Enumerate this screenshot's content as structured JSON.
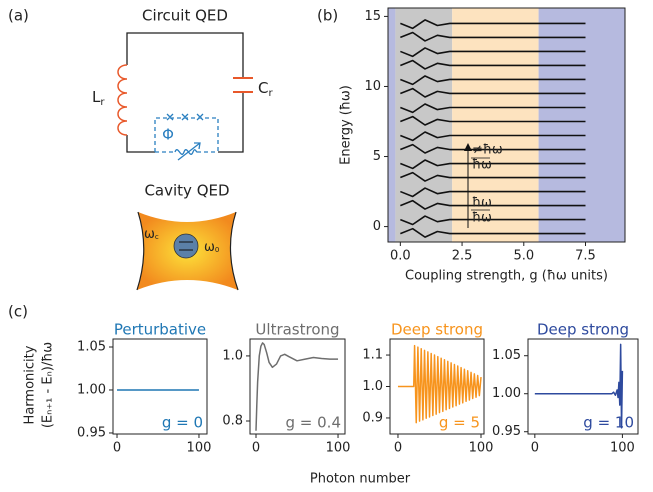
{
  "panels": [
    "(a)",
    "(b)",
    "(c)"
  ],
  "diagram": {
    "circuit_title": "Circuit QED",
    "inductor": {
      "main": "L",
      "sub": "r"
    },
    "capacitor": {
      "main": "C",
      "sub": "r"
    },
    "flux": "Φ",
    "cavity_title": "Cavity QED",
    "cavity_mode": {
      "main": "ω",
      "sub": "c"
    },
    "atom": {
      "main": "ω",
      "sub": "0"
    }
  },
  "panel_c": {
    "ylabel_line1": "Harmonicity",
    "ylabel_line2": "(Eₙ₊₁ - Eₙ)/ħω",
    "xlabel": "Photon number"
  },
  "chart_data": [
    {
      "type": "line",
      "xlabel": "Coupling strength, g (ħω units)",
      "ylabel": "Energy (ħω)",
      "xlim": [
        -0.5,
        9.1
      ],
      "ylim": [
        -1.1,
        15.6
      ],
      "xticks": [
        {
          "value": 0,
          "label": "0.0"
        },
        2.5,
        {
          "value": 5,
          "label": "5.0"
        },
        7.5
      ],
      "yticks": [
        0,
        5,
        10,
        15
      ],
      "regions": [
        {
          "from": -0.5,
          "to": -0.2,
          "color": "#b6badf"
        },
        {
          "from": -0.2,
          "to": 2.1,
          "color": "#c8c8c8"
        },
        {
          "from": 2.1,
          "to": 5.6,
          "color": "#fde3bf"
        },
        {
          "from": 5.6,
          "to": 9.1,
          "color": "#b6badf"
        }
      ],
      "annotations": [
        "≠ħω",
        "ħω",
        "ħω",
        "ħω"
      ],
      "x": [
        0,
        0.5,
        1,
        1.5,
        2,
        3,
        5,
        7.5
      ],
      "series": [
        {
          "color": "#111111",
          "values": [
            -0.5,
            -0.15,
            -0.75,
            -0.35,
            -0.5,
            -0.5,
            -0.5,
            -0.5
          ]
        },
        {
          "color": "#111111",
          "values": [
            0.5,
            0.15,
            0.75,
            0.35,
            0.5,
            0.5,
            0.5,
            0.5
          ]
        },
        {
          "color": "#111111",
          "values": [
            1.5,
            1.85,
            1.25,
            1.65,
            1.5,
            1.5,
            1.5,
            1.5
          ]
        },
        {
          "color": "#111111",
          "values": [
            2.5,
            2.15,
            2.75,
            2.35,
            2.5,
            2.5,
            2.5,
            2.5
          ]
        },
        {
          "color": "#111111",
          "values": [
            3.5,
            3.85,
            3.25,
            3.65,
            3.5,
            3.5,
            3.5,
            3.5
          ]
        },
        {
          "color": "#111111",
          "values": [
            4.5,
            4.15,
            4.75,
            4.35,
            4.5,
            4.5,
            4.5,
            4.5
          ]
        },
        {
          "color": "#111111",
          "values": [
            5.5,
            5.85,
            5.25,
            5.65,
            5.5,
            5.5,
            5.5,
            5.5
          ]
        },
        {
          "color": "#111111",
          "values": [
            6.5,
            6.15,
            6.75,
            6.35,
            6.5,
            6.5,
            6.5,
            6.5
          ]
        },
        {
          "color": "#111111",
          "values": [
            7.5,
            7.85,
            7.25,
            7.65,
            7.5,
            7.5,
            7.5,
            7.5
          ]
        },
        {
          "color": "#111111",
          "values": [
            8.5,
            8.15,
            8.75,
            8.35,
            8.5,
            8.5,
            8.5,
            8.5
          ]
        },
        {
          "color": "#111111",
          "values": [
            9.5,
            9.85,
            9.25,
            9.65,
            9.5,
            9.5,
            9.5,
            9.5
          ]
        },
        {
          "color": "#111111",
          "values": [
            10.5,
            10.15,
            10.75,
            10.35,
            10.5,
            10.5,
            10.5,
            10.5
          ]
        },
        {
          "color": "#111111",
          "values": [
            11.5,
            11.85,
            11.25,
            11.65,
            11.5,
            11.5,
            11.5,
            11.5
          ]
        },
        {
          "color": "#111111",
          "values": [
            12.5,
            12.15,
            12.75,
            12.35,
            12.5,
            12.5,
            12.5,
            12.5
          ]
        },
        {
          "color": "#111111",
          "values": [
            13.5,
            13.85,
            13.25,
            13.65,
            13.5,
            13.5,
            13.5,
            13.5
          ]
        },
        {
          "color": "#111111",
          "values": [
            14.5,
            14.15,
            14.75,
            14.35,
            14.5,
            14.5,
            14.5,
            14.5
          ]
        }
      ]
    },
    {
      "type": "line",
      "title": "Perturbative",
      "title_color": "#1f77b4",
      "annotation": "g = 0",
      "xlim": [
        -4.9,
        109.8
      ],
      "ylim": [
        0.9488,
        1.0593
      ],
      "xticks": [
        0,
        100
      ],
      "yticks": [
        1.05,
        {
          "value": 1,
          "label": "1.00"
        },
        0.95
      ],
      "x": [
        0,
        100
      ],
      "series": [
        {
          "color": "#1f77b4",
          "values": [
            1,
            1
          ]
        }
      ]
    },
    {
      "type": "line",
      "title": "Ultrastrong",
      "title_color": "#6e6e6e",
      "annotation": "g = 0.4",
      "xlim": [
        -7.3,
        108.5
      ],
      "ylim": [
        0.76,
        1.052
      ],
      "xticks": [
        0,
        100
      ],
      "yticks": [
        {
          "value": 1,
          "label": "1.0"
        },
        0.8
      ],
      "x": [
        0,
        1,
        2,
        4,
        6,
        8,
        10,
        13,
        16,
        20,
        25,
        30,
        35,
        40,
        50,
        60,
        70,
        80,
        90,
        100
      ],
      "series": [
        {
          "color": "#6e6e6e",
          "values": [
            0.77,
            0.85,
            0.92,
            1.0,
            1.03,
            1.04,
            1.035,
            1.01,
            0.98,
            0.965,
            0.975,
            1.0,
            1.005,
            0.998,
            0.985,
            0.99,
            0.995,
            0.992,
            0.99,
            0.99
          ]
        }
      ]
    },
    {
      "type": "line",
      "title": "Deep strong",
      "title_color": "#f7941d",
      "annotation": "g = 5",
      "xlim": [
        -9.6,
        103.6
      ],
      "ylim": [
        0.849,
        1.151
      ],
      "xticks": [
        0,
        100
      ],
      "yticks": [
        1.1,
        {
          "value": 1,
          "label": "1.0"
        },
        0.9
      ],
      "x": [
        0,
        19,
        20,
        22,
        24,
        26,
        28,
        30,
        32,
        34,
        36,
        38,
        40,
        42,
        44,
        46,
        48,
        50,
        52,
        54,
        56,
        58,
        60,
        62,
        64,
        66,
        68,
        70,
        72,
        74,
        76,
        78,
        80,
        82,
        84,
        86,
        88,
        90,
        92,
        94,
        96,
        98,
        100
      ],
      "series": [
        {
          "color": "#f7941d",
          "values": [
            1.0,
            1.0,
            1.13,
            0.885,
            1.125,
            0.89,
            1.12,
            0.894,
            1.115,
            0.899,
            1.11,
            0.903,
            1.105,
            0.908,
            1.1,
            0.912,
            1.095,
            0.917,
            1.09,
            0.921,
            1.085,
            0.926,
            1.08,
            0.93,
            1.075,
            0.935,
            1.07,
            0.939,
            1.065,
            0.944,
            1.06,
            0.948,
            1.055,
            0.953,
            1.05,
            0.957,
            1.045,
            0.962,
            1.04,
            0.966,
            1.035,
            0.971,
            1.03
          ]
        }
      ]
    },
    {
      "type": "line",
      "title": "Deep strong",
      "title_color": "#2e4a9e",
      "annotation": "g = 10",
      "xlim": [
        -7.8,
        117.8
      ],
      "ylim": [
        0.947,
        1.072
      ],
      "xticks": [
        0,
        100
      ],
      "yticks": [
        1.05,
        {
          "value": 1,
          "label": "1.00"
        },
        0.95
      ],
      "x": [
        0,
        88,
        90,
        92,
        94,
        95,
        96,
        97,
        98,
        99,
        100
      ],
      "series": [
        {
          "color": "#2e4a9e",
          "values": [
            1,
            1,
            1.002,
            0.998,
            1.005,
            0.995,
            1.015,
            0.985,
            1.065,
            0.955,
            1.03
          ]
        }
      ]
    }
  ]
}
